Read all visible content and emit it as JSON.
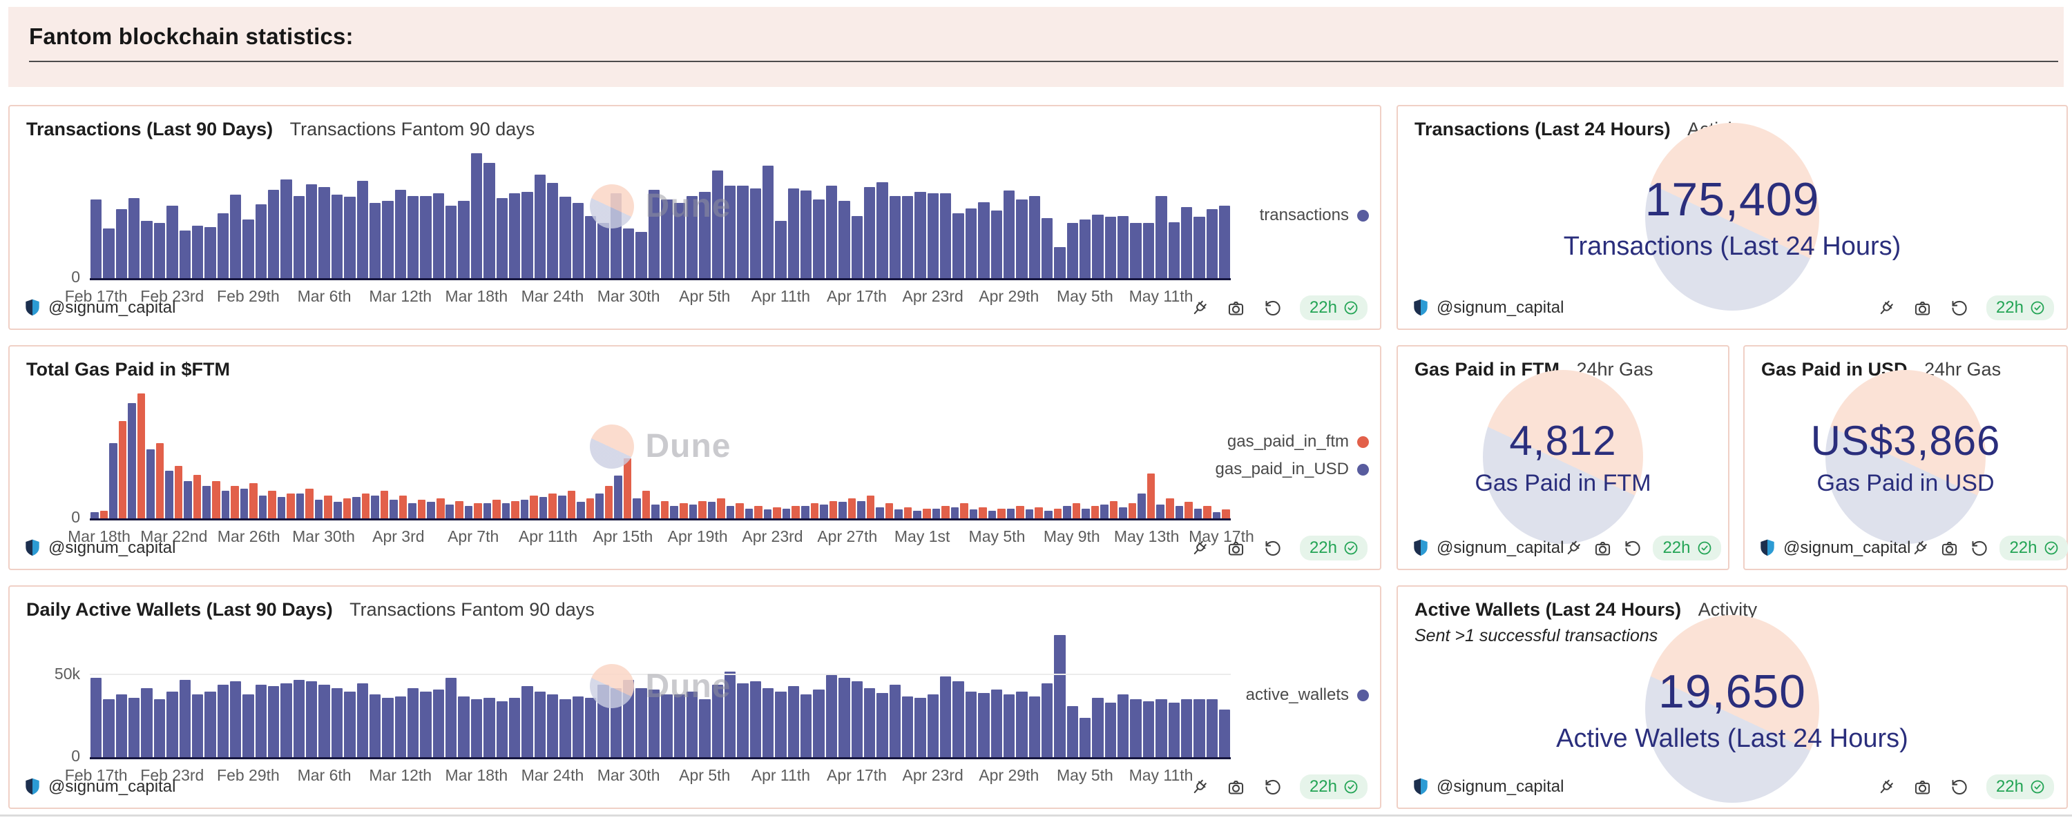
{
  "header": {
    "title": "Fantom blockchain statistics:"
  },
  "watermark": {
    "brand": "Dune"
  },
  "panel_footer": {
    "author": "@signum_capital",
    "age": "22h",
    "author_icon": "signum-shield-icon",
    "action_icons": [
      "fork-icon",
      "camera-icon",
      "refresh-icon",
      "verified-check-icon"
    ]
  },
  "colors": {
    "bar_purple": "#585c9e",
    "bar_orange": "#e2604a",
    "counter_navy": "#2a2e7c",
    "badge_green": "#23a455",
    "panel_border": "#f0d0c6",
    "header_bg": "#f9ece8"
  },
  "panels": {
    "transactions_90d": {
      "title": "Transactions (Last 90 Days)",
      "subtitle": "Transactions Fantom 90 days"
    },
    "transactions_24h": {
      "title": "Transactions (Last 24 Hours)",
      "subtitle": "Activity",
      "value": "175,409",
      "label": "Transactions (Last 24 Hours)"
    },
    "gas_90d": {
      "title": "Total Gas Paid in $FTM"
    },
    "gas_ftm_24h": {
      "title": "Gas Paid in FTM",
      "subtitle": "24hr Gas",
      "value": "4,812",
      "label": "Gas Paid in FTM"
    },
    "gas_usd_24h": {
      "title": "Gas Paid in USD",
      "subtitle": "24hr Gas",
      "value": "US$3,866",
      "label": "Gas Paid in USD"
    },
    "wallets_90d": {
      "title": "Daily Active Wallets (Last 90 Days)",
      "subtitle": "Transactions Fantom 90 days"
    },
    "wallets_24h": {
      "title": "Active Wallets (Last 24 Hours)",
      "subtitle": "Activity",
      "note": "Sent >1 successful transactions",
      "value": "19,650",
      "label": "Active Wallets (Last 24 Hours)"
    }
  },
  "chart_data": [
    {
      "type": "bar",
      "title": "Transactions (Last 90 Days)",
      "subtitle": "Transactions Fantom 90 days",
      "x_axis": "date (daily, Feb 17 - May 16)",
      "y_unit": "relative height % of max (y axis unlabeled except 0)",
      "y_max": 100,
      "y_ticks": [
        {
          "value": 0,
          "label": "0"
        }
      ],
      "x_tick_labels": [
        "Feb 17th",
        "Feb 23rd",
        "Feb 29th",
        "Mar 6th",
        "Mar 12th",
        "Mar 18th",
        "Mar 24th",
        "Mar 30th",
        "Apr 5th",
        "Apr 11th",
        "Apr 17th",
        "Apr 23rd",
        "Apr 29th",
        "May 5th",
        "May 11th"
      ],
      "x_tick_indices": [
        0,
        6,
        12,
        18,
        24,
        30,
        36,
        42,
        48,
        54,
        60,
        66,
        72,
        78,
        84
      ],
      "legend_position": "right",
      "series": [
        {
          "name": "transactions",
          "color": "#585c9e",
          "values": [
            63,
            40,
            55,
            64,
            46,
            44,
            58,
            38,
            42,
            41,
            52,
            67,
            47,
            59,
            71,
            79,
            66,
            75,
            73,
            67,
            65,
            78,
            60,
            62,
            71,
            66,
            66,
            68,
            58,
            62,
            100,
            92,
            64,
            68,
            69,
            83,
            76,
            65,
            60,
            50,
            44,
            68,
            40,
            37,
            71,
            63,
            60,
            66,
            69,
            86,
            74,
            74,
            72,
            90,
            46,
            72,
            70,
            63,
            74,
            62,
            50,
            73,
            77,
            66,
            66,
            69,
            68,
            68,
            52,
            56,
            61,
            54,
            70,
            63,
            66,
            48,
            25,
            44,
            47,
            51,
            49,
            50,
            44,
            44,
            66,
            45,
            57,
            49,
            55,
            58
          ]
        }
      ]
    },
    {
      "type": "bar",
      "title": "Total Gas Paid in $FTM",
      "x_axis": "date (daily, Mar 18 - May 17)",
      "y_unit": "relative height % of max (y axis unlabeled except 0)",
      "y_max": 100,
      "y_ticks": [
        {
          "value": 0,
          "label": "0"
        }
      ],
      "x_tick_labels": [
        "Mar 18th",
        "Mar 22nd",
        "Mar 26th",
        "Mar 30th",
        "Apr 3rd",
        "Apr 7th",
        "Apr 11th",
        "Apr 15th",
        "Apr 19th",
        "Apr 23rd",
        "Apr 27th",
        "May 1st",
        "May 5th",
        "May 9th",
        "May 13th",
        "May 17th"
      ],
      "x_tick_indices": [
        0,
        4,
        8,
        12,
        16,
        20,
        24,
        28,
        32,
        36,
        40,
        44,
        48,
        52,
        56,
        60
      ],
      "legend_position": "right",
      "series": [
        {
          "name": "gas_paid_in_USD",
          "color": "#585c9e",
          "values": [
            5,
            60,
            92,
            55,
            38,
            30,
            26,
            22,
            24,
            18,
            17,
            20,
            15,
            13,
            17,
            18,
            15,
            12,
            13,
            11,
            10,
            12,
            12,
            15,
            17,
            18,
            13,
            20,
            34,
            16,
            11,
            10,
            11,
            13,
            10,
            8,
            7,
            8,
            10,
            11,
            13,
            14,
            9,
            7,
            6,
            8,
            9,
            7,
            6,
            8,
            7,
            6,
            10,
            8,
            11,
            9,
            20,
            11,
            10,
            8,
            5
          ]
        },
        {
          "name": "gas_paid_in_ftm",
          "color": "#e2604a",
          "values": [
            6,
            78,
            100,
            60,
            42,
            35,
            30,
            26,
            28,
            22,
            20,
            24,
            18,
            16,
            20,
            22,
            18,
            15,
            16,
            14,
            12,
            15,
            14,
            18,
            20,
            22,
            16,
            26,
            48,
            22,
            14,
            12,
            14,
            16,
            12,
            10,
            9,
            10,
            12,
            14,
            16,
            18,
            12,
            9,
            8,
            10,
            12,
            9,
            8,
            10,
            9,
            8,
            12,
            10,
            14,
            12,
            36,
            16,
            13,
            10,
            7
          ]
        }
      ]
    },
    {
      "type": "bar",
      "title": "Daily Active Wallets (Last 90 Days)",
      "subtitle": "Transactions Fantom 90 days",
      "x_axis": "date (daily, Feb 17 - May 16)",
      "y_unit": "thousands of wallets (gridline labeled 50k)",
      "y_max": 75,
      "y_ticks": [
        {
          "value": 0,
          "label": "0"
        },
        {
          "value": 50,
          "label": "50k"
        }
      ],
      "x_tick_labels": [
        "Feb 17th",
        "Feb 23rd",
        "Feb 29th",
        "Mar 6th",
        "Mar 12th",
        "Mar 18th",
        "Mar 24th",
        "Mar 30th",
        "Apr 5th",
        "Apr 11th",
        "Apr 17th",
        "Apr 23rd",
        "Apr 29th",
        "May 5th",
        "May 11th"
      ],
      "x_tick_indices": [
        0,
        6,
        12,
        18,
        24,
        30,
        36,
        42,
        48,
        54,
        60,
        66,
        72,
        78,
        84
      ],
      "legend_position": "right",
      "series": [
        {
          "name": "active_wallets",
          "color": "#585c9e",
          "values": [
            48,
            35,
            38,
            36,
            42,
            35,
            40,
            47,
            38,
            40,
            44,
            46,
            38,
            44,
            43,
            45,
            47,
            46,
            44,
            42,
            40,
            45,
            38,
            36,
            37,
            42,
            40,
            41,
            48,
            37,
            35,
            36,
            34,
            36,
            43,
            40,
            38,
            35,
            37,
            36,
            44,
            42,
            47,
            42,
            41,
            38,
            38,
            40,
            35,
            44,
            52,
            45,
            46,
            42,
            40,
            43,
            38,
            41,
            50,
            48,
            46,
            42,
            39,
            44,
            37,
            36,
            38,
            49,
            46,
            40,
            39,
            41,
            38,
            40,
            37,
            45,
            74,
            31,
            24,
            36,
            33,
            38,
            35,
            34,
            35,
            33,
            35,
            35,
            35,
            29
          ]
        }
      ]
    }
  ]
}
